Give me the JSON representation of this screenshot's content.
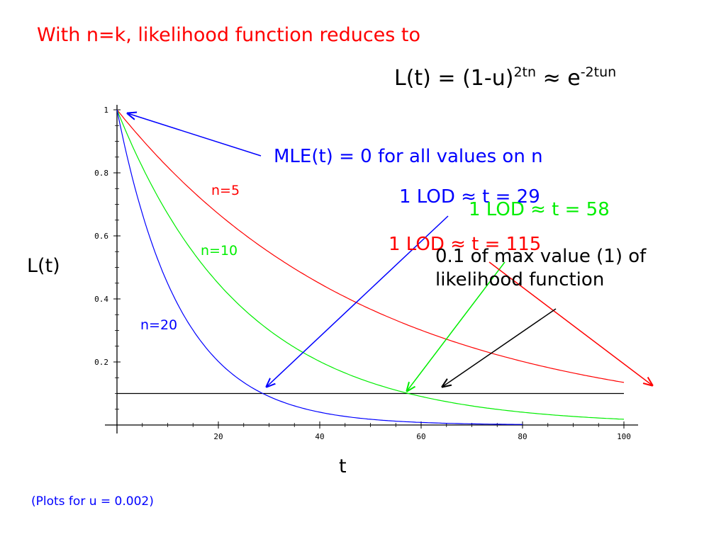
{
  "title": "With n=k, likelihood function reduces to",
  "formula": {
    "lhs": "L(t) = (1-u)",
    "sup1": "2tn",
    "mid": " ≈ e",
    "sup2": "-2tun"
  },
  "annotations": {
    "mle": "MLE(t) = 0 for all values on n",
    "lod_n20": "1 LOD ≈ t = 29",
    "lod_n10": "1 LOD ≈ t = 58",
    "lod_n5": "1 LOD ≈ t = 115",
    "tenth": "0.1 of max value (1) of likelihood function"
  },
  "footnote": "(Plots for u = 0.002)",
  "colors": {
    "n5": "#ff0000",
    "n10": "#00ee00",
    "n20": "#0000ff",
    "reference": "#000000",
    "title": "#ff0000",
    "note": "#0000ff"
  },
  "chart_data": {
    "type": "line",
    "xlabel": "t",
    "ylabel": "L(t)",
    "xlim": [
      0,
      100
    ],
    "ylim": [
      0,
      1
    ],
    "xticks": [
      "20",
      "40",
      "60",
      "80",
      "100"
    ],
    "yticks": [
      "0.2",
      "0.4",
      "0.6",
      "0.8",
      "1"
    ],
    "u": 0.002,
    "series": [
      {
        "name": "n=5",
        "n": 5,
        "color": "#ff0000",
        "x": [
          0,
          10,
          20,
          30,
          40,
          50,
          60,
          70,
          80,
          90,
          100
        ],
        "y": [
          1.0,
          0.82,
          0.67,
          0.55,
          0.45,
          0.37,
          0.3,
          0.25,
          0.2,
          0.17,
          0.14
        ]
      },
      {
        "name": "n=10",
        "n": 10,
        "color": "#00ee00",
        "x": [
          0,
          10,
          20,
          30,
          40,
          50,
          60,
          70,
          80,
          90,
          100
        ],
        "y": [
          1.0,
          0.67,
          0.45,
          0.3,
          0.2,
          0.14,
          0.09,
          0.06,
          0.04,
          0.03,
          0.02
        ]
      },
      {
        "name": "n=20",
        "n": 20,
        "color": "#0000ff",
        "x": [
          0,
          10,
          20,
          30,
          40,
          50,
          60,
          70,
          80
        ],
        "y": [
          1.0,
          0.45,
          0.2,
          0.09,
          0.04,
          0.02,
          0.01,
          0.0,
          0.0
        ]
      }
    ],
    "reference_line": {
      "y": 0.1,
      "x": [
        0,
        100
      ]
    }
  }
}
